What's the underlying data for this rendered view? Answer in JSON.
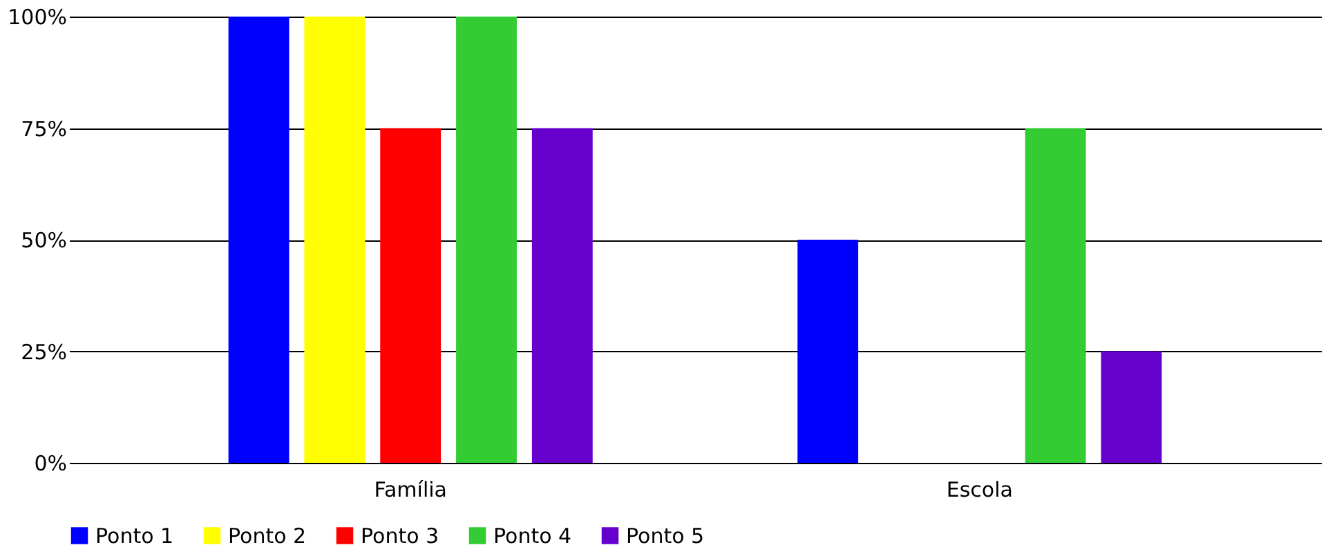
{
  "chart_data": {
    "type": "bar",
    "categories": [
      "Família",
      "Escola"
    ],
    "series": [
      {
        "name": "Ponto 1",
        "color": "#0000ff",
        "values": [
          100,
          50
        ]
      },
      {
        "name": "Ponto 2",
        "color": "#ffff00",
        "values": [
          100,
          0
        ]
      },
      {
        "name": "Ponto 3",
        "color": "#ff0000",
        "values": [
          75,
          0
        ]
      },
      {
        "name": "Ponto 4",
        "color": "#33cc33",
        "values": [
          100,
          75
        ]
      },
      {
        "name": "Ponto 5",
        "color": "#6600cc",
        "values": [
          75,
          25
        ]
      }
    ],
    "ylim": [
      0,
      100
    ],
    "yticks": [
      {
        "value": 0,
        "label": "0%"
      },
      {
        "value": 25,
        "label": "25%"
      },
      {
        "value": 50,
        "label": "50%"
      },
      {
        "value": 75,
        "label": "75%"
      },
      {
        "value": 100,
        "label": "100%"
      }
    ],
    "grid": "y",
    "legend": "bottom"
  }
}
